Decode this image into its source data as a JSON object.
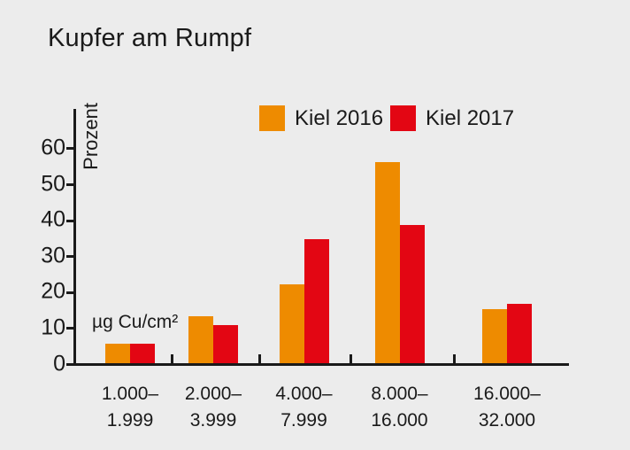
{
  "title": "Kupfer am Rumpf",
  "colors": {
    "background": "#ECECEC",
    "text": "#1A1A1A",
    "axis": "#1A1A1A"
  },
  "chart_data": {
    "type": "bar",
    "title": "Kupfer am Rumpf",
    "ylabel": "Prozent",
    "unit_label": "µg Cu/cm²",
    "categories": [
      {
        "line1": "1.000–",
        "line2": "1.999"
      },
      {
        "line1": "2.000–",
        "line2": "3.999"
      },
      {
        "line1": "4.000–",
        "line2": "7.999"
      },
      {
        "line1": "8.000–",
        "line2": "16.000"
      },
      {
        "line1": "16.000–",
        "line2": "32.000"
      }
    ],
    "series": [
      {
        "name": "Kiel 2016",
        "color": "#EE8B00",
        "values": [
          5.5,
          13,
          22,
          56,
          15
        ]
      },
      {
        "name": "Kiel 2017",
        "color": "#E30613",
        "values": [
          5.5,
          10.5,
          34.5,
          38.5,
          16.5
        ]
      }
    ],
    "yticks": [
      0,
      10,
      20,
      30,
      40,
      50,
      60
    ],
    "ylim": [
      0,
      71
    ],
    "grid": false,
    "legend_position": "top-center"
  }
}
